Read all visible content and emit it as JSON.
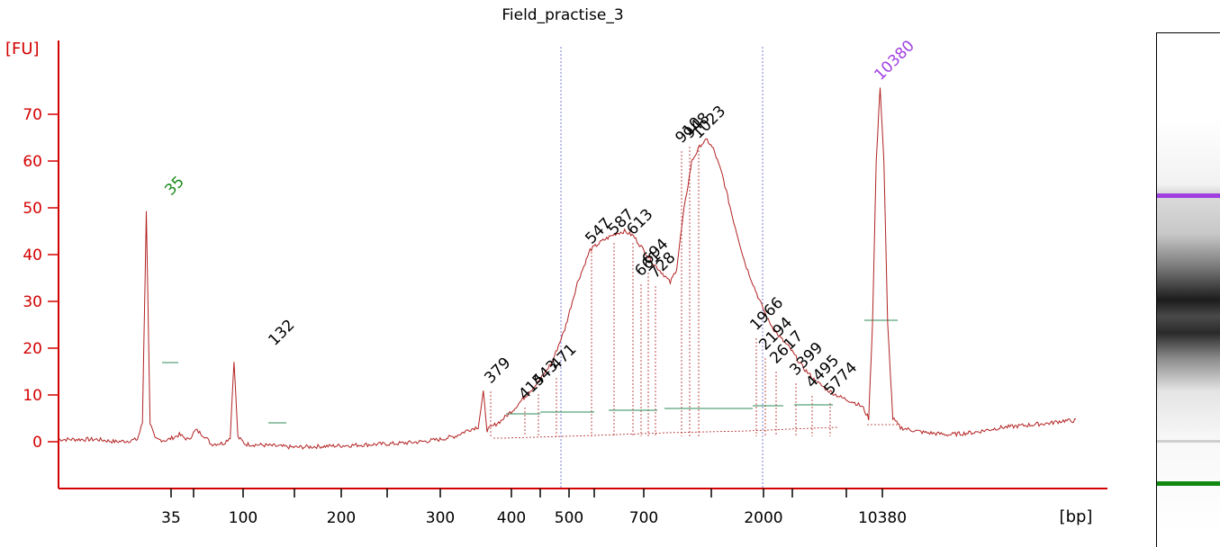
{
  "chart_data": {
    "type": "line",
    "title": "Field_practise_3",
    "ylabel": "[FU]",
    "xlabel": "[bp]",
    "ylim": [
      -10,
      80
    ],
    "yticks": [
      0,
      10,
      20,
      30,
      40,
      50,
      60,
      70
    ],
    "xtick_labels": [
      "35",
      "100",
      "200",
      "300",
      "400",
      "500",
      "700",
      "2000",
      "10380"
    ],
    "grid": false,
    "colors": {
      "axis": "#d40000",
      "trace": "#b22222",
      "marker_35": "#1a8a1a",
      "marker_10380": "#a040e0",
      "region_line": "#7b7bd8",
      "baseline_segments": "#2e8b57"
    },
    "series": [
      {
        "values": [
          [
            30,
            0.5
          ],
          [
            45,
            0
          ],
          [
            55,
            0.2
          ],
          [
            62,
            0.5
          ],
          [
            66,
            4
          ],
          [
            69,
            49.5
          ],
          [
            72,
            4
          ],
          [
            76,
            0.5
          ],
          [
            85,
            0.3
          ],
          [
            95,
            1.5
          ],
          [
            102,
            0.4
          ],
          [
            108,
            2.5
          ],
          [
            115,
            1.2
          ],
          [
            120,
            -0.5
          ],
          [
            130,
            -0.3
          ],
          [
            135,
            1
          ],
          [
            138,
            17.5
          ],
          [
            141,
            1
          ],
          [
            147,
            -0.5
          ],
          [
            165,
            -0.8
          ],
          [
            185,
            -1.2
          ],
          [
            205,
            -1
          ],
          [
            225,
            -0.8
          ],
          [
            245,
            -0.6
          ],
          [
            265,
            -0.4
          ],
          [
            285,
            0
          ],
          [
            300,
            0.5
          ],
          [
            312,
            1.2
          ],
          [
            322,
            2.5
          ],
          [
            330,
            3.2
          ],
          [
            334,
            10.5
          ],
          [
            337,
            2.5
          ],
          [
            348,
            4.5
          ],
          [
            358,
            7
          ],
          [
            368,
            10
          ],
          [
            378,
            13
          ],
          [
            388,
            17
          ],
          [
            398,
            24
          ],
          [
            408,
            34
          ],
          [
            418,
            41
          ],
          [
            428,
            43
          ],
          [
            438,
            44.5
          ],
          [
            445,
            45
          ],
          [
            452,
            44
          ],
          [
            460,
            41
          ],
          [
            468,
            38
          ],
          [
            475,
            36
          ],
          [
            481,
            34
          ],
          [
            486,
            37
          ],
          [
            492,
            50
          ],
          [
            498,
            60
          ],
          [
            505,
            63.5
          ],
          [
            510,
            64.5
          ],
          [
            515,
            62.5
          ],
          [
            522,
            57
          ],
          [
            530,
            48
          ],
          [
            540,
            38
          ],
          [
            550,
            31
          ],
          [
            558,
            26
          ],
          [
            565,
            23
          ],
          [
            575,
            20
          ],
          [
            585,
            16
          ],
          [
            595,
            13
          ],
          [
            605,
            11
          ],
          [
            615,
            9.5
          ],
          [
            625,
            8.5
          ],
          [
            632,
            7.5
          ],
          [
            637,
            5
          ],
          [
            640,
            25
          ],
          [
            643,
            60
          ],
          [
            646,
            76
          ],
          [
            649,
            60
          ],
          [
            652,
            25
          ],
          [
            656,
            5
          ],
          [
            662,
            3
          ],
          [
            680,
            2
          ],
          [
            700,
            1.5
          ],
          [
            720,
            2
          ],
          [
            740,
            3
          ],
          [
            760,
            3.5
          ],
          [
            780,
            4
          ],
          [
            790,
            4.5
          ]
        ]
      }
    ],
    "peak_labels": [
      "35",
      "132",
      "379",
      "415",
      "443",
      "471",
      "547",
      "587",
      "613",
      "661",
      "694",
      "728",
      "910",
      "948",
      "1023",
      "1966",
      "2194",
      "2617",
      "3399",
      "4495",
      "5774",
      "10380"
    ],
    "gel_image": {
      "bands": [
        "upper marker (purple)",
        "main smear (dark)",
        "faint lower band",
        "lower marker (green)"
      ]
    }
  }
}
